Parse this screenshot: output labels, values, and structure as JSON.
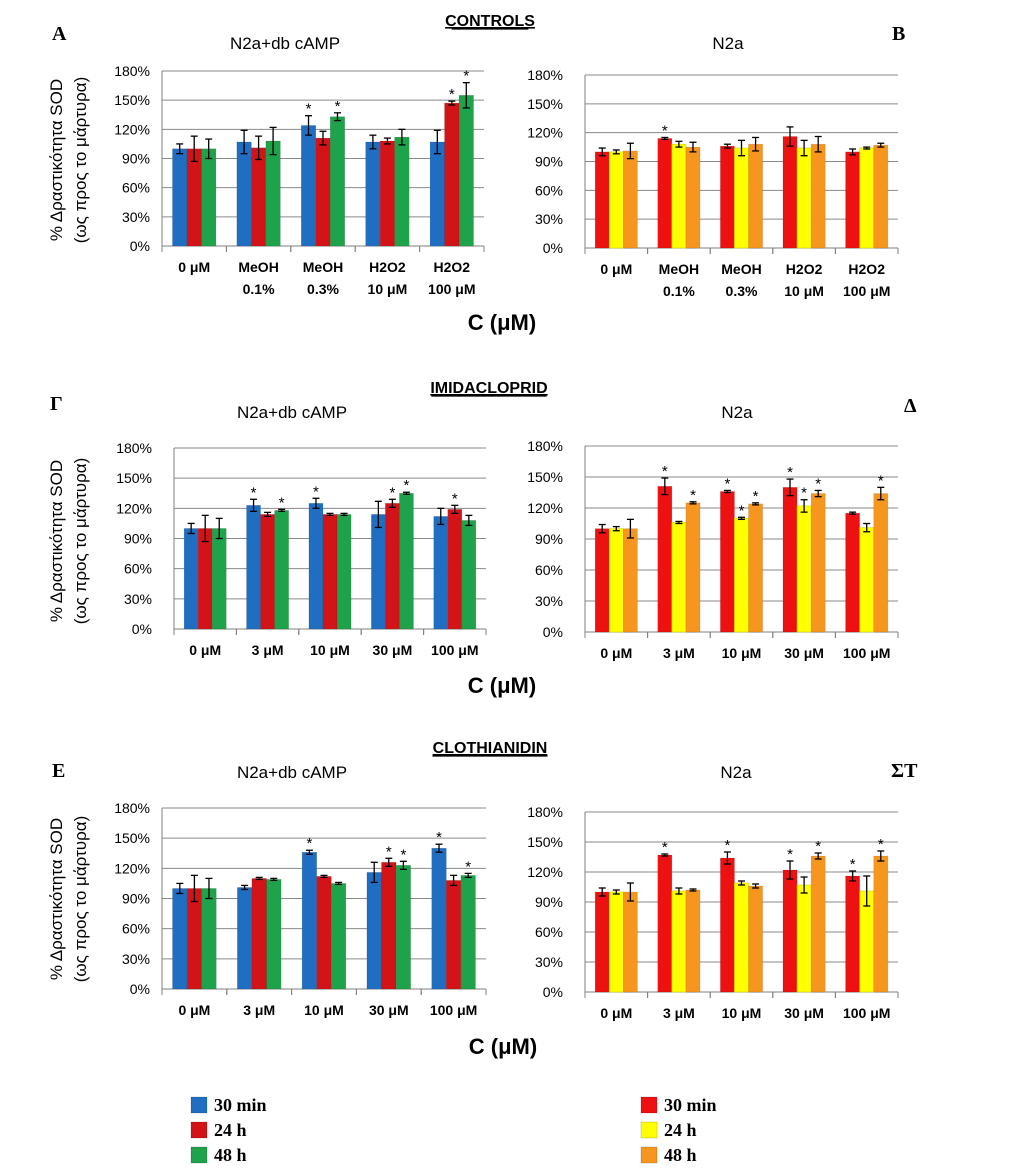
{
  "sections": [
    {
      "title": "CONTROLS"
    },
    {
      "title": "IMIDACLOPRID"
    },
    {
      "title": "CLOTHIANIDIN"
    }
  ],
  "x_axis_label": "C (μM)",
  "y_axis_label": {
    "line1": "% Δραστικότητα SOD",
    "line2": "(ως προς το μάρτυρα)"
  },
  "significance_marker": "*",
  "legend_left": [
    {
      "label": "30 min",
      "color": "#1F6EC1"
    },
    {
      "label": "24 h",
      "color": "#D21418"
    },
    {
      "label": "48 h",
      "color": "#1FA34A"
    }
  ],
  "legend_right": [
    {
      "label": "30 min",
      "color": "#EE1111"
    },
    {
      "label": "24 h",
      "color": "#FFFF00"
    },
    {
      "label": "48 h",
      "color": "#F7961E"
    }
  ],
  "chart_data": [
    {
      "panel": "A",
      "type": "bar",
      "title": "N2a+db cAMP",
      "section": "CONTROLS",
      "ylabel": "% Δραστικότητα SOD (ως προς το μάρτυρα)",
      "xlabel": "C (μM)",
      "ylim": [
        0,
        180
      ],
      "yticks": [
        "0%",
        "30%",
        "60%",
        "90%",
        "120%",
        "150%",
        "180%"
      ],
      "categories": [
        [
          "0 μM"
        ],
        [
          "MeOH",
          "0.1%"
        ],
        [
          "MeOH",
          "0.3%"
        ],
        [
          "H2O2",
          "10 μM"
        ],
        [
          "H2O2",
          "100 μM"
        ]
      ],
      "series": [
        {
          "name": "30 min",
          "color": "#1F6EC1",
          "values": [
            100,
            107,
            124,
            107,
            107
          ],
          "errors": [
            5,
            12,
            10,
            7,
            12
          ],
          "sig": [
            false,
            false,
            true,
            false,
            false
          ]
        },
        {
          "name": "24 h",
          "color": "#D21418",
          "values": [
            100,
            101,
            111,
            108,
            147
          ],
          "errors": [
            13,
            12,
            7,
            3,
            2
          ],
          "sig": [
            false,
            false,
            false,
            false,
            true
          ]
        },
        {
          "name": "48 h",
          "color": "#1FA34A",
          "values": [
            100,
            108,
            133,
            112,
            155
          ],
          "errors": [
            10,
            14,
            4,
            8,
            13
          ],
          "sig": [
            false,
            false,
            true,
            false,
            true
          ]
        }
      ]
    },
    {
      "panel": "B",
      "type": "bar",
      "title": "N2a",
      "section": "CONTROLS",
      "xlabel": "C (μM)",
      "ylim": [
        0,
        180
      ],
      "yticks": [
        "0%",
        "30%",
        "60%",
        "90%",
        "120%",
        "150%",
        "180%"
      ],
      "categories": [
        [
          "0 μM"
        ],
        [
          "MeOH",
          "0.1%"
        ],
        [
          "MeOH",
          "0.3%"
        ],
        [
          "H2O2",
          "10 μM"
        ],
        [
          "H2O2",
          "100 μM"
        ]
      ],
      "series": [
        {
          "name": "30 min",
          "color": "#EE1111",
          "values": [
            100,
            114,
            106,
            116,
            100
          ],
          "errors": [
            4,
            1,
            2,
            10,
            3
          ],
          "sig": [
            false,
            true,
            false,
            false,
            false
          ]
        },
        {
          "name": "24 h",
          "color": "#FFFF00",
          "values": [
            100,
            108,
            104,
            104,
            104
          ],
          "errors": [
            2,
            3,
            8,
            8,
            1
          ],
          "sig": [
            false,
            false,
            false,
            false,
            false
          ]
        },
        {
          "name": "48 h",
          "color": "#F7961E",
          "values": [
            101,
            105,
            108,
            108,
            107
          ],
          "errors": [
            8,
            5,
            7,
            8,
            2
          ],
          "sig": [
            false,
            false,
            false,
            false,
            false
          ]
        }
      ]
    },
    {
      "panel": "Γ",
      "type": "bar",
      "title": "N2a+db cAMP",
      "section": "IMIDACLOPRID",
      "xlabel": "C (μM)",
      "ylim": [
        0,
        180
      ],
      "yticks": [
        "0%",
        "30%",
        "60%",
        "90%",
        "120%",
        "150%",
        "180%"
      ],
      "categories": [
        [
          "0 μM"
        ],
        [
          "3 μM"
        ],
        [
          "10 μM"
        ],
        [
          "30 μM"
        ],
        [
          "100 μM"
        ]
      ],
      "series": [
        {
          "name": "30 min",
          "color": "#1F6EC1",
          "values": [
            100,
            123,
            125,
            114,
            112
          ],
          "errors": [
            5,
            6,
            5,
            13,
            8
          ],
          "sig": [
            false,
            true,
            true,
            false,
            false
          ]
        },
        {
          "name": "24 h",
          "color": "#D21418",
          "values": [
            100,
            114,
            114,
            125,
            119
          ],
          "errors": [
            13,
            2,
            1,
            4,
            4
          ],
          "sig": [
            false,
            false,
            false,
            true,
            true
          ]
        },
        {
          "name": "48 h",
          "color": "#1FA34A",
          "values": [
            100,
            118,
            114,
            135,
            108
          ],
          "errors": [
            10,
            1,
            1,
            1,
            5
          ],
          "sig": [
            false,
            true,
            false,
            true,
            false
          ]
        }
      ]
    },
    {
      "panel": "Δ",
      "type": "bar",
      "title": "N2a",
      "section": "IMIDACLOPRID",
      "xlabel": "C (μM)",
      "ylim": [
        0,
        180
      ],
      "yticks": [
        "0%",
        "30%",
        "60%",
        "90%",
        "120%",
        "150%",
        "180%"
      ],
      "categories": [
        [
          "0 μM"
        ],
        [
          "3 μM"
        ],
        [
          "10 μM"
        ],
        [
          "30 μM"
        ],
        [
          "100 μM"
        ]
      ],
      "series": [
        {
          "name": "30 min",
          "color": "#EE1111",
          "values": [
            100,
            141,
            136,
            140,
            115
          ],
          "errors": [
            4,
            8,
            1,
            8,
            1
          ],
          "sig": [
            false,
            true,
            true,
            true,
            false
          ]
        },
        {
          "name": "24 h",
          "color": "#FFFF00",
          "values": [
            100,
            106,
            110,
            122,
            101
          ],
          "errors": [
            2,
            1,
            1,
            6,
            4
          ],
          "sig": [
            false,
            false,
            true,
            true,
            false
          ]
        },
        {
          "name": "48 h",
          "color": "#F7961E",
          "values": [
            100,
            125,
            124,
            134,
            134
          ],
          "errors": [
            9,
            1,
            1,
            3,
            6
          ],
          "sig": [
            false,
            true,
            true,
            true,
            true
          ]
        }
      ]
    },
    {
      "panel": "E",
      "type": "bar",
      "title": "N2a+db cAMP",
      "section": "CLOTHIANIDIN",
      "xlabel": "C (μM)",
      "ylim": [
        0,
        180
      ],
      "yticks": [
        "0%",
        "30%",
        "60%",
        "90%",
        "120%",
        "150%",
        "180%"
      ],
      "categories": [
        [
          "0 μM"
        ],
        [
          "3 μM"
        ],
        [
          "10 μM"
        ],
        [
          "30 μM"
        ],
        [
          "100 μM"
        ]
      ],
      "series": [
        {
          "name": "30 min",
          "color": "#1F6EC1",
          "values": [
            100,
            101,
            136,
            116,
            140
          ],
          "errors": [
            5,
            2,
            2,
            10,
            4
          ],
          "sig": [
            false,
            false,
            true,
            false,
            true
          ]
        },
        {
          "name": "24 h",
          "color": "#D21418",
          "values": [
            100,
            110,
            112,
            126,
            108
          ],
          "errors": [
            13,
            1,
            1,
            4,
            5
          ],
          "sig": [
            false,
            false,
            false,
            true,
            false
          ]
        },
        {
          "name": "48 h",
          "color": "#1FA34A",
          "values": [
            100,
            109,
            105,
            123,
            113
          ],
          "errors": [
            10,
            1,
            1,
            4,
            2
          ],
          "sig": [
            false,
            false,
            false,
            true,
            true
          ]
        }
      ]
    },
    {
      "panel": "ΣΤ",
      "type": "bar",
      "title": "N2a",
      "section": "CLOTHIANIDIN",
      "xlabel": "C (μM)",
      "ylim": [
        0,
        180
      ],
      "yticks": [
        "0%",
        "30%",
        "60%",
        "90%",
        "120%",
        "150%",
        "180%"
      ],
      "categories": [
        [
          "0 μM"
        ],
        [
          "3 μM"
        ],
        [
          "10 μM"
        ],
        [
          "30 μM"
        ],
        [
          "100 μM"
        ]
      ],
      "series": [
        {
          "name": "30 min",
          "color": "#EE1111",
          "values": [
            100,
            137,
            134,
            122,
            116
          ],
          "errors": [
            4,
            1,
            6,
            9,
            5
          ],
          "sig": [
            false,
            true,
            true,
            true,
            true
          ]
        },
        {
          "name": "24 h",
          "color": "#FFFF00",
          "values": [
            100,
            101,
            109,
            107,
            101
          ],
          "errors": [
            2,
            3,
            2,
            8,
            15
          ],
          "sig": [
            false,
            false,
            false,
            false,
            false
          ]
        },
        {
          "name": "48 h",
          "color": "#F7961E",
          "values": [
            100,
            102,
            106,
            136,
            136
          ],
          "errors": [
            9,
            1,
            2,
            3,
            5
          ],
          "sig": [
            false,
            false,
            false,
            true,
            true
          ]
        }
      ]
    }
  ]
}
